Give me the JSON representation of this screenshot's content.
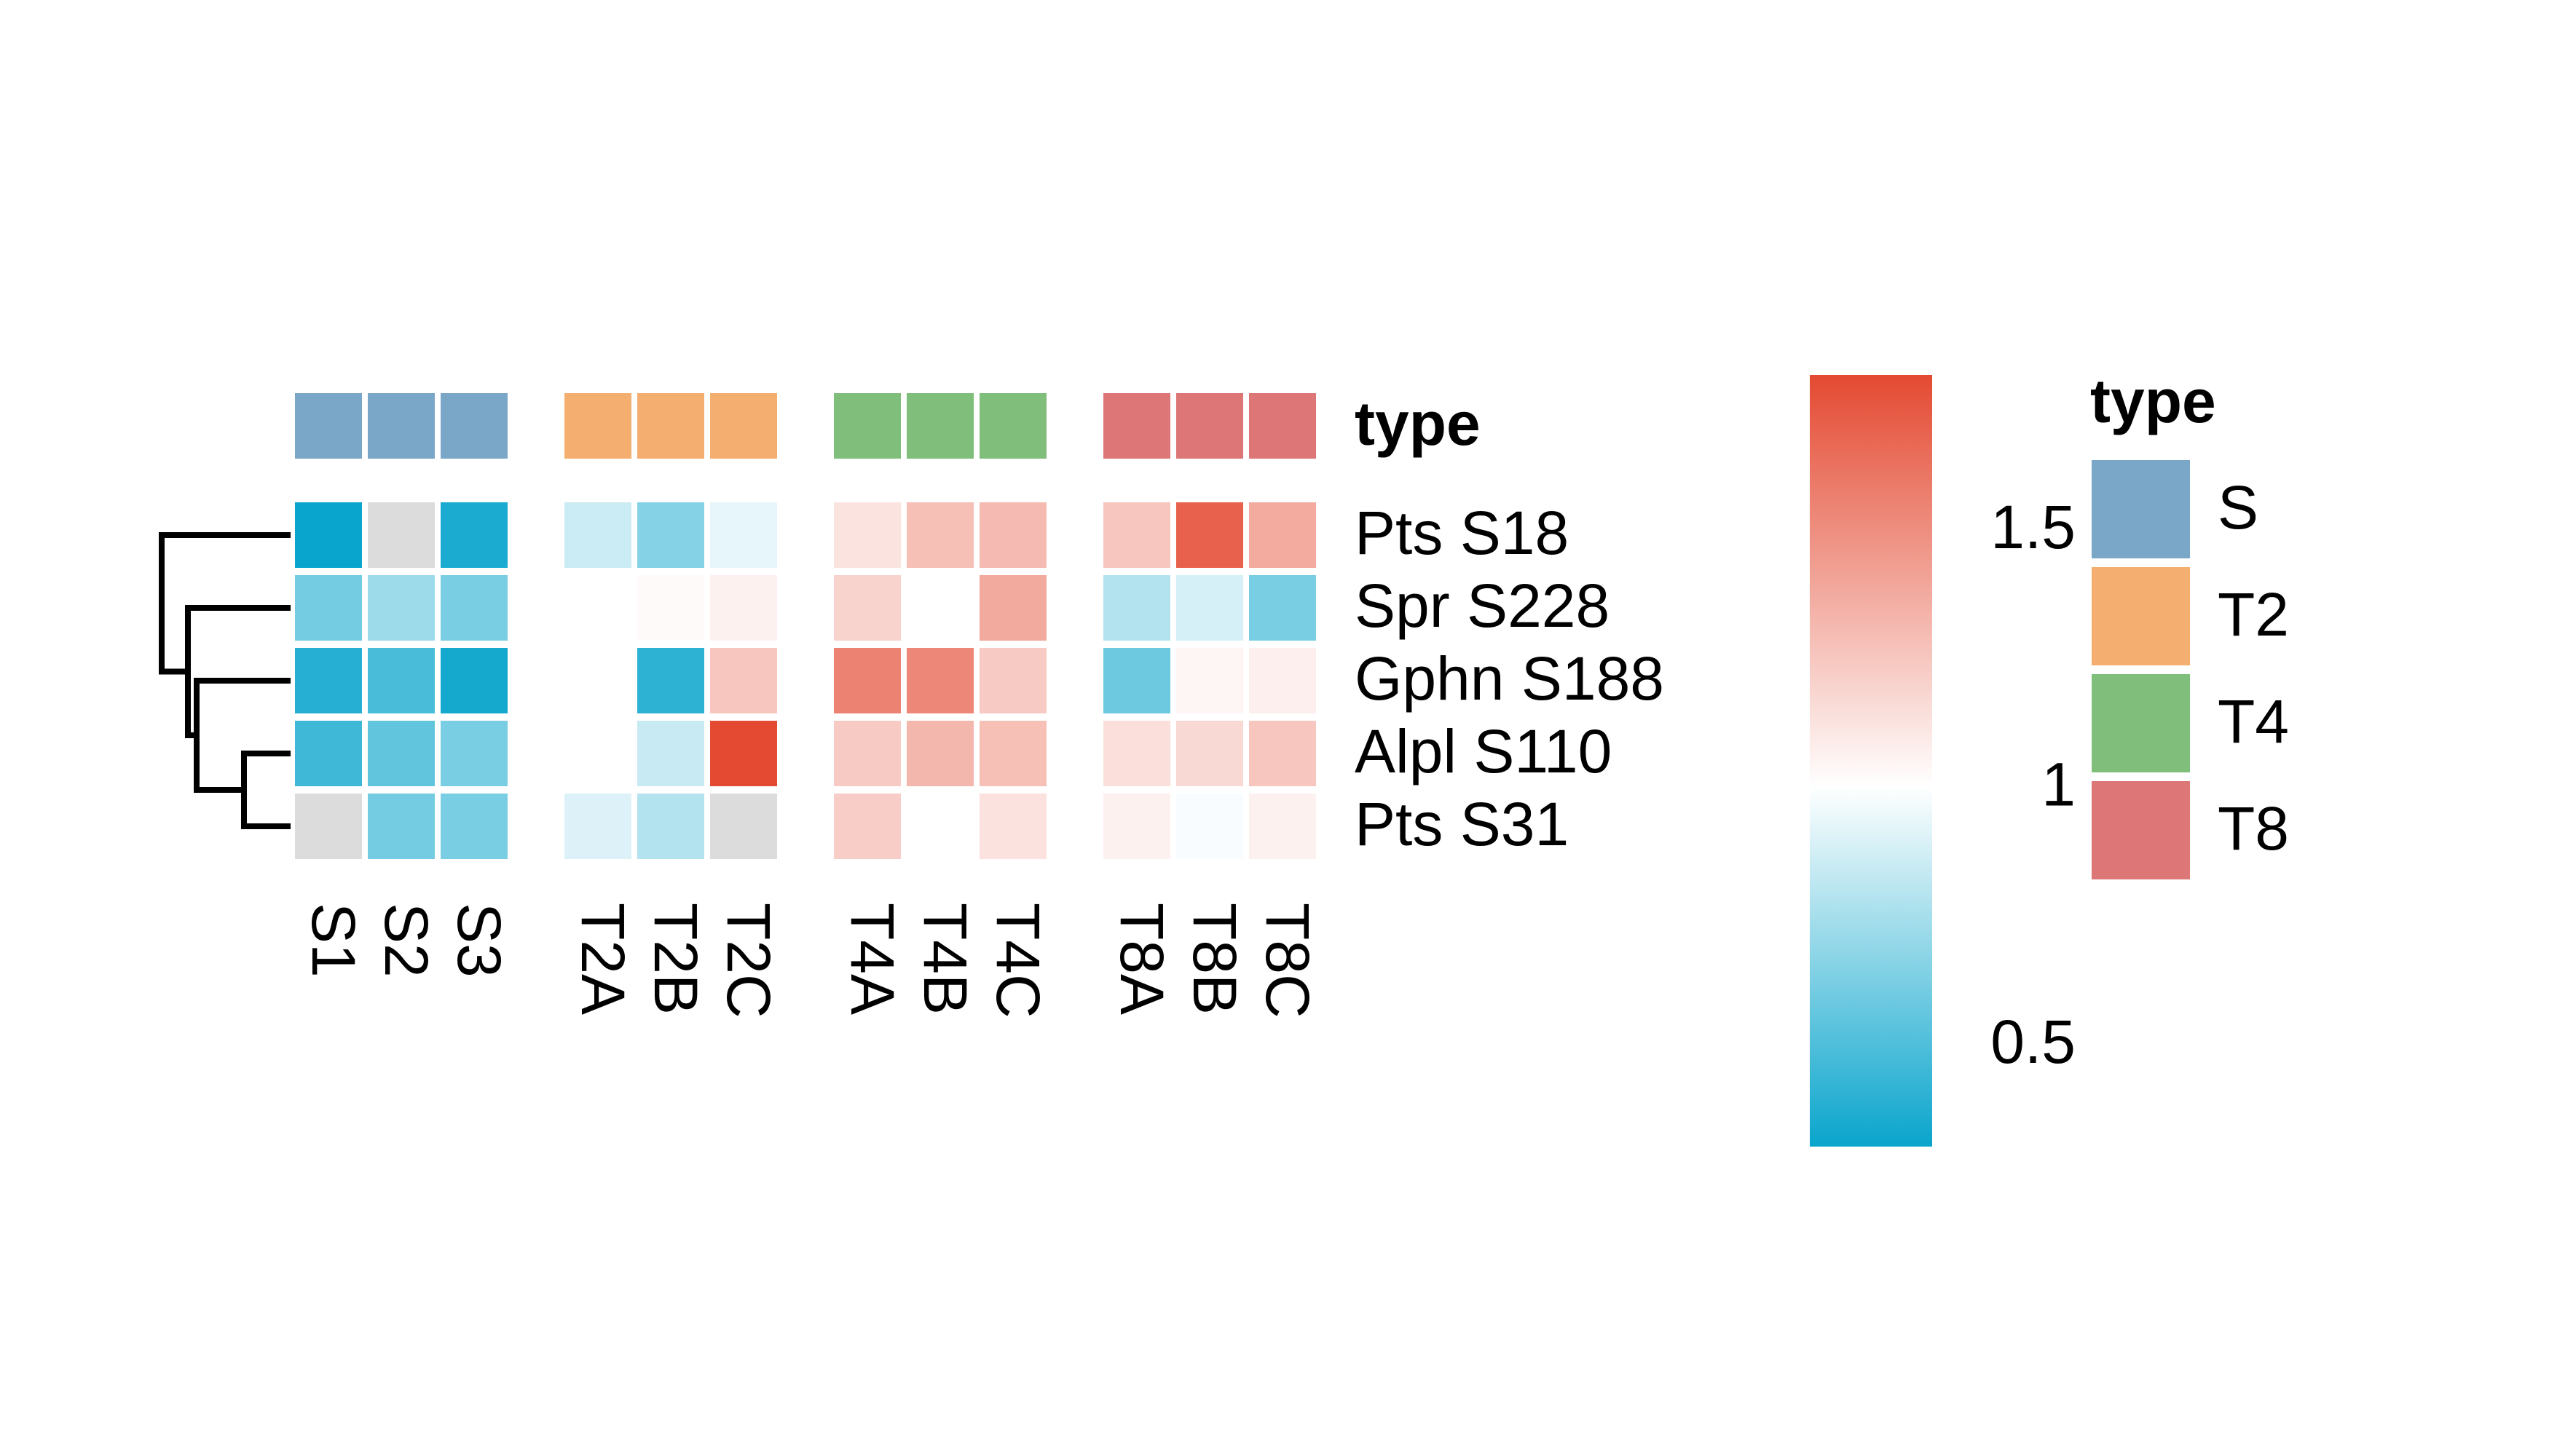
{
  "chart_data": {
    "type": "heatmap",
    "title": "",
    "columns": [
      "S1",
      "S2",
      "S3",
      "T2A",
      "T2B",
      "T2C",
      "T4A",
      "T4B",
      "T4C",
      "T8A",
      "T8B",
      "T8C"
    ],
    "column_groups": [
      {
        "name": "S",
        "color": "#7aa6c8",
        "columns": [
          "S1",
          "S2",
          "S3"
        ]
      },
      {
        "name": "T2",
        "color": "#f4ae6f",
        "columns": [
          "T2A",
          "T2B",
          "T2C"
        ]
      },
      {
        "name": "T4",
        "color": "#80be7c",
        "columns": [
          "T4A",
          "T4B",
          "T4C"
        ]
      },
      {
        "name": "T8",
        "color": "#dc7677",
        "columns": [
          "T8A",
          "T8B",
          "T8C"
        ]
      }
    ],
    "rows": [
      "Pts S18",
      "Spr S228",
      "Gphn S188",
      "Alpl S110",
      "Pts S31"
    ],
    "values": [
      [
        0.28,
        null,
        0.35,
        0.85,
        0.65,
        0.93,
        1.12,
        1.28,
        1.3,
        1.25,
        1.7,
        1.37
      ],
      [
        0.6,
        0.72,
        0.62,
        1.0,
        1.02,
        1.06,
        1.2,
        1.0,
        1.38,
        0.78,
        0.88,
        0.62
      ],
      [
        0.38,
        0.48,
        0.33,
        1.0,
        0.4,
        1.25,
        1.55,
        1.53,
        1.23,
        0.58,
        1.04,
        1.07
      ],
      [
        0.45,
        0.55,
        0.62,
        1.0,
        0.84,
        1.8,
        1.23,
        1.32,
        1.28,
        1.14,
        1.17,
        1.25
      ],
      [
        null,
        0.6,
        0.62,
        0.9,
        0.78,
        null,
        1.22,
        1.0,
        1.13,
        1.06,
        0.98,
        1.06
      ]
    ],
    "na_color": "#dcdcdc",
    "row_dendrogram": "Gphn S188 and Spr S228 leaves; Alpl S110 + Pts S31 merge first",
    "color_scale": {
      "low": 0.3,
      "mid": 1.0,
      "high": 1.8,
      "colors": [
        "#0aa5cc",
        "#ffffff",
        "#e44a32"
      ],
      "ticks": [
        0.5,
        1,
        1.5
      ],
      "tick_labels": [
        "0.5",
        "1",
        "1.5"
      ]
    },
    "annotation_label": "type",
    "legend": {
      "title": "type",
      "entries": [
        {
          "label": "S",
          "color": "#7aa6c8"
        },
        {
          "label": "T2",
          "color": "#f4ae6f"
        },
        {
          "label": "T4",
          "color": "#80be7c"
        },
        {
          "label": "T8",
          "color": "#dc7677"
        }
      ]
    }
  }
}
